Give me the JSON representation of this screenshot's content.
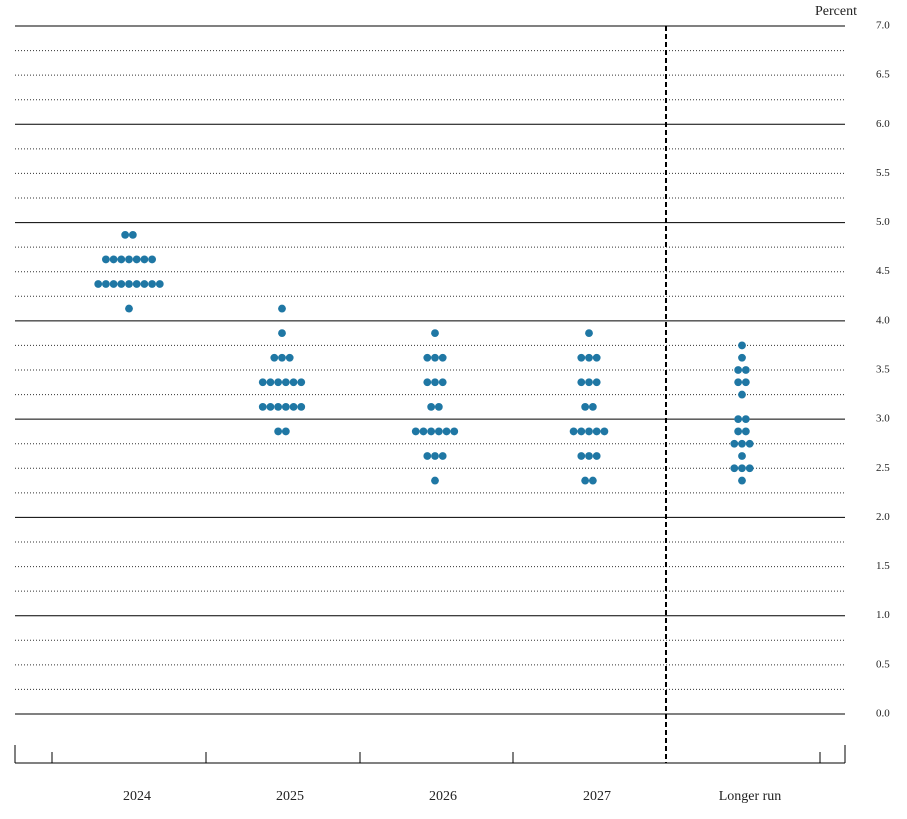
{
  "chart_data": {
    "type": "dot",
    "y_axis_label": "Percent",
    "ylim": [
      0,
      7
    ],
    "yticks": [
      {
        "value": 0,
        "label": "0.0"
      },
      {
        "value": 0.5,
        "label": "0.5"
      },
      {
        "value": 1,
        "label": "1.0"
      },
      {
        "value": 1.5,
        "label": "1.5"
      },
      {
        "value": 2,
        "label": "2.0"
      },
      {
        "value": 2.5,
        "label": "2.5"
      },
      {
        "value": 3,
        "label": "3.0"
      },
      {
        "value": 3.5,
        "label": "3.5"
      },
      {
        "value": 4,
        "label": "4.0"
      },
      {
        "value": 4.5,
        "label": "4.5"
      },
      {
        "value": 5,
        "label": "5.0"
      },
      {
        "value": 5.5,
        "label": "5.5"
      },
      {
        "value": 6,
        "label": "6.0"
      },
      {
        "value": 6.5,
        "label": "6.5"
      },
      {
        "value": 7,
        "label": "7.0"
      }
    ],
    "minor_yticks": [
      0.25,
      0.75,
      1.25,
      1.75,
      2.25,
      2.75,
      3.25,
      3.75,
      4.25,
      4.75,
      5.25,
      5.75,
      6.25,
      6.75
    ],
    "grid": true,
    "color": "#1f77a4",
    "categories": [
      {
        "name": "2024",
        "levels": [
          {
            "rate": 4.875,
            "count": 2
          },
          {
            "rate": 4.625,
            "count": 7
          },
          {
            "rate": 4.375,
            "count": 9
          },
          {
            "rate": 4.125,
            "count": 1
          }
        ]
      },
      {
        "name": "2025",
        "levels": [
          {
            "rate": 4.125,
            "count": 1
          },
          {
            "rate": 3.875,
            "count": 1
          },
          {
            "rate": 3.625,
            "count": 3
          },
          {
            "rate": 3.375,
            "count": 6
          },
          {
            "rate": 3.125,
            "count": 6
          },
          {
            "rate": 2.875,
            "count": 2
          }
        ]
      },
      {
        "name": "2026",
        "levels": [
          {
            "rate": 3.875,
            "count": 1
          },
          {
            "rate": 3.625,
            "count": 3
          },
          {
            "rate": 3.375,
            "count": 3
          },
          {
            "rate": 3.125,
            "count": 2
          },
          {
            "rate": 2.875,
            "count": 6
          },
          {
            "rate": 2.625,
            "count": 3
          },
          {
            "rate": 2.375,
            "count": 1
          }
        ]
      },
      {
        "name": "2027",
        "levels": [
          {
            "rate": 3.875,
            "count": 1
          },
          {
            "rate": 3.625,
            "count": 3
          },
          {
            "rate": 3.375,
            "count": 3
          },
          {
            "rate": 3.125,
            "count": 2
          },
          {
            "rate": 2.875,
            "count": 5
          },
          {
            "rate": 2.625,
            "count": 3
          },
          {
            "rate": 2.375,
            "count": 2
          }
        ]
      },
      {
        "name": "Longer run",
        "levels": [
          {
            "rate": 3.75,
            "count": 1
          },
          {
            "rate": 3.625,
            "count": 1
          },
          {
            "rate": 3.5,
            "count": 2
          },
          {
            "rate": 3.375,
            "count": 2
          },
          {
            "rate": 3.25,
            "count": 1
          },
          {
            "rate": 3.0,
            "count": 2
          },
          {
            "rate": 2.875,
            "count": 2
          },
          {
            "rate": 2.75,
            "count": 3
          },
          {
            "rate": 2.625,
            "count": 1
          },
          {
            "rate": 2.5,
            "count": 3
          },
          {
            "rate": 2.375,
            "count": 1
          }
        ]
      }
    ]
  }
}
